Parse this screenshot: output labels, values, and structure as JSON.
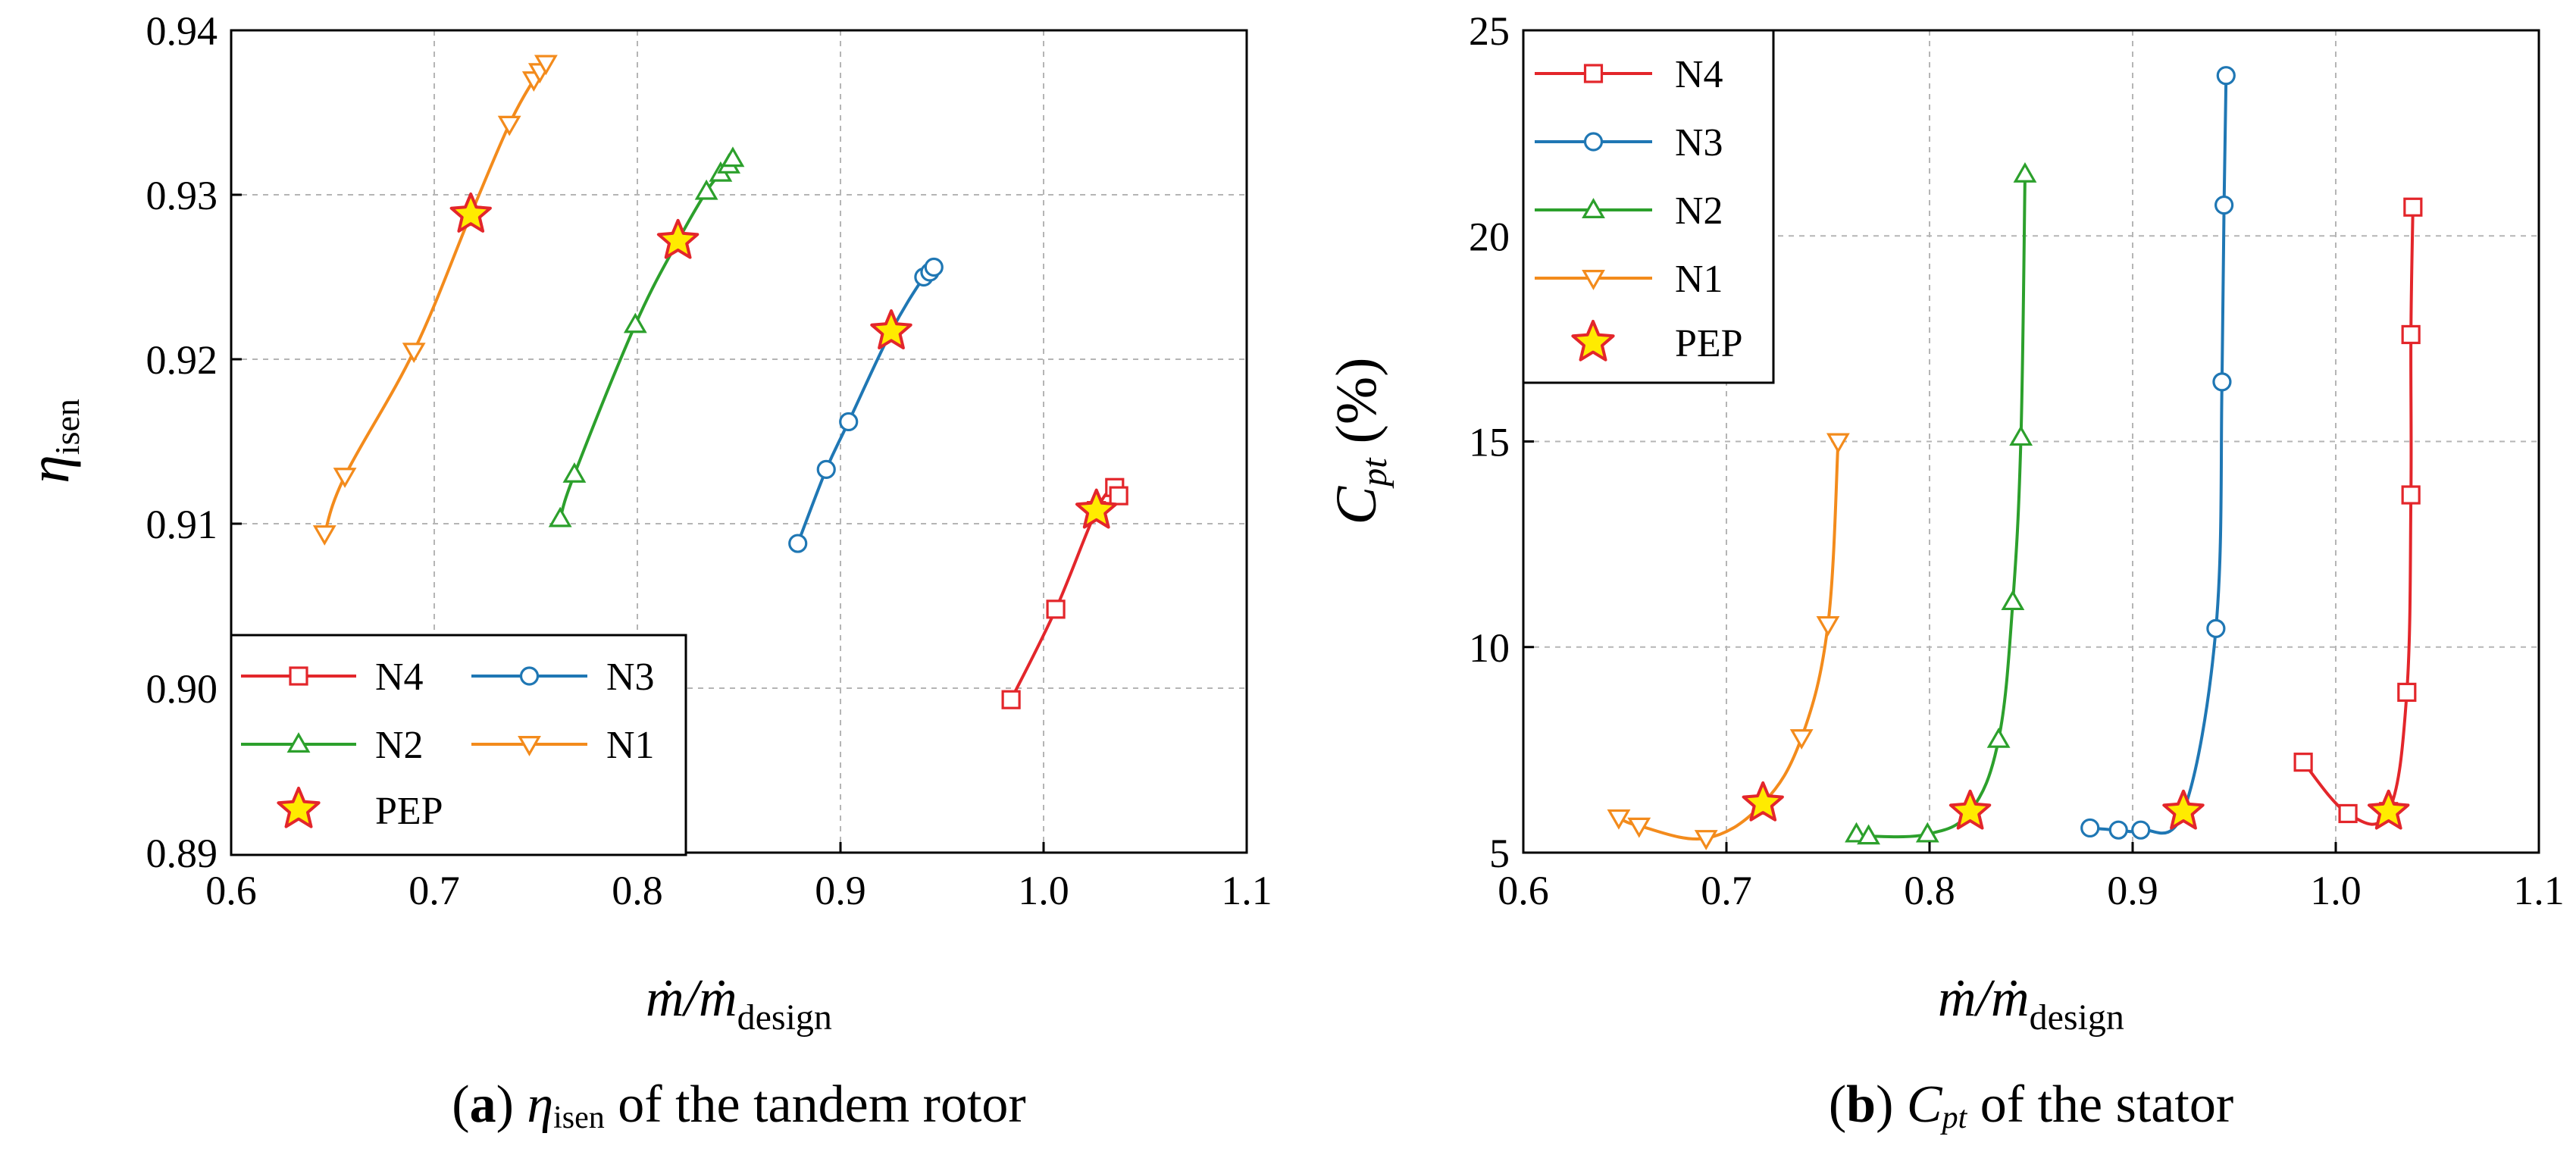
{
  "figure": {
    "panels": [
      {
        "caption_letter": "a",
        "caption_symbol": "η",
        "caption_subscript": "isen",
        "caption_rest": " of the tandem rotor"
      },
      {
        "caption_letter": "b",
        "caption_symbol": "C",
        "caption_subscript": "pt",
        "caption_rest": " of the stator"
      }
    ]
  },
  "colors": {
    "N4": "#e3262b",
    "N3": "#1f77b4",
    "N2": "#2ca02c",
    "N1": "#f38b1c",
    "PEP_fill": "#ffeb00",
    "PEP_edge": "#e3262b",
    "grid": "#b5b5b5"
  },
  "chart_data": [
    {
      "type": "line",
      "xlabel": "ṁ/ṁ",
      "xlabel_sub": "design",
      "ylabel": "η",
      "ylabel_sub": "isen",
      "xlim": [
        0.6,
        1.1
      ],
      "ylim": [
        0.89,
        0.94
      ],
      "xticks": [
        "0.6",
        "0.7",
        "0.8",
        "0.9",
        "1.0",
        "1.1"
      ],
      "yticks": [
        "0.89",
        "0.90",
        "0.91",
        "0.92",
        "0.93",
        "0.94"
      ],
      "legend_position": "lower-left",
      "series": [
        {
          "name": "N4",
          "marker": "square",
          "x": [
            0.984,
            1.006,
            1.026,
            1.035,
            1.037
          ],
          "y": [
            0.8993,
            0.9048,
            0.9108,
            0.9122,
            0.9117
          ]
        },
        {
          "name": "N3",
          "marker": "circle",
          "x": [
            0.879,
            0.893,
            0.904,
            0.925,
            0.941,
            0.944,
            0.946
          ],
          "y": [
            0.9088,
            0.9133,
            0.9162,
            0.9217,
            0.925,
            0.9253,
            0.9256
          ]
        },
        {
          "name": "N2",
          "marker": "triangle-up",
          "x": [
            0.762,
            0.769,
            0.799,
            0.82,
            0.834,
            0.841,
            0.845,
            0.847
          ],
          "y": [
            0.9103,
            0.913,
            0.9221,
            0.9272,
            0.9302,
            0.9313,
            0.9318,
            0.9322
          ]
        },
        {
          "name": "N1",
          "marker": "triangle-down",
          "x": [
            0.646,
            0.656,
            0.69,
            0.718,
            0.737,
            0.749,
            0.752,
            0.755
          ],
          "y": [
            0.9094,
            0.9129,
            0.9205,
            0.9288,
            0.9343,
            0.937,
            0.9375,
            0.938
          ]
        }
      ],
      "pep": {
        "name": "PEP",
        "x": [
          1.026,
          0.925,
          0.82,
          0.718
        ],
        "y": [
          0.9108,
          0.9217,
          0.9272,
          0.9288
        ]
      }
    },
    {
      "type": "line",
      "xlabel": "ṁ/ṁ",
      "xlabel_sub": "design",
      "ylabel": "C",
      "ylabel_sub": "pt",
      "ylabel_unit": " (%)",
      "xlim": [
        0.6,
        1.1
      ],
      "ylim": [
        5,
        25
      ],
      "xticks": [
        "0.6",
        "0.7",
        "0.8",
        "0.9",
        "1.0",
        "1.1"
      ],
      "yticks": [
        "5",
        "10",
        "15",
        "20",
        "25"
      ],
      "legend_position": "top-left",
      "series": [
        {
          "name": "N4",
          "marker": "square",
          "x": [
            0.984,
            1.006,
            1.026,
            1.035,
            1.037,
            1.037,
            1.038
          ],
          "y": [
            7.2,
            5.95,
            6.0,
            8.9,
            13.7,
            17.6,
            20.7
          ]
        },
        {
          "name": "N3",
          "marker": "circle",
          "x": [
            0.879,
            0.893,
            0.904,
            0.925,
            0.941,
            0.944,
            0.945,
            0.946
          ],
          "y": [
            5.6,
            5.55,
            5.55,
            6.0,
            10.45,
            16.45,
            20.75,
            23.9
          ]
        },
        {
          "name": "N2",
          "marker": "triangle-up",
          "x": [
            0.764,
            0.77,
            0.799,
            0.82,
            0.834,
            0.841,
            0.845,
            0.847
          ],
          "y": [
            5.45,
            5.4,
            5.45,
            6.0,
            7.75,
            11.1,
            15.1,
            21.5
          ]
        },
        {
          "name": "N1",
          "marker": "triangle-down",
          "x": [
            0.647,
            0.657,
            0.69,
            0.718,
            0.737,
            0.75,
            0.755
          ],
          "y": [
            5.85,
            5.65,
            5.35,
            6.2,
            7.8,
            10.55,
            15.0
          ]
        }
      ],
      "pep": {
        "name": "PEP",
        "x": [
          1.026,
          0.925,
          0.82,
          0.718
        ],
        "y": [
          6.0,
          6.0,
          6.0,
          6.2
        ]
      }
    }
  ]
}
